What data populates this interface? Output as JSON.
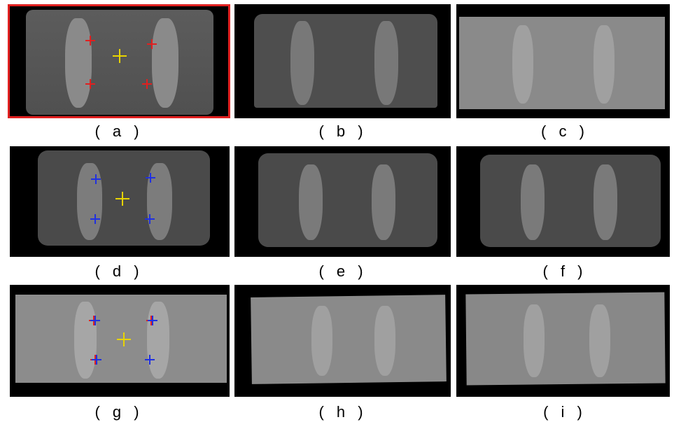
{
  "colors": {
    "selected_outline": "#e02020",
    "landmark_red": "#e02020",
    "landmark_blue": "#2030e0",
    "center_yellow": "#e8d400",
    "background": "#000000"
  },
  "panels": [
    {
      "caption": "( a )",
      "selected": true,
      "tone": "#5a5a5a"
    },
    {
      "caption": "( b )",
      "selected": false,
      "tone": "#4e4e4e"
    },
    {
      "caption": "( c )",
      "selected": false,
      "tone": "#8a8a8a"
    },
    {
      "caption": "( d )",
      "selected": false,
      "tone": "#4a4a4a"
    },
    {
      "caption": "( e )",
      "selected": false,
      "tone": "#4a4a4a"
    },
    {
      "caption": "( f )",
      "selected": false,
      "tone": "#4a4a4a"
    },
    {
      "caption": "( g )",
      "selected": false,
      "tone": "#8c8c8c"
    },
    {
      "caption": "( h )",
      "selected": false,
      "tone": "#8a8a8a"
    },
    {
      "caption": "( i )",
      "selected": false,
      "tone": "#888888"
    }
  ],
  "landmarks": {
    "a": {
      "outer": "landmark_red",
      "center": "center_yellow"
    },
    "d": {
      "outer": "landmark_blue",
      "center": "center_yellow"
    },
    "g": {
      "outer": "landmark_blue_and_red",
      "center": "center_yellow"
    }
  },
  "icons": [
    "crosshair-marker-icon"
  ]
}
